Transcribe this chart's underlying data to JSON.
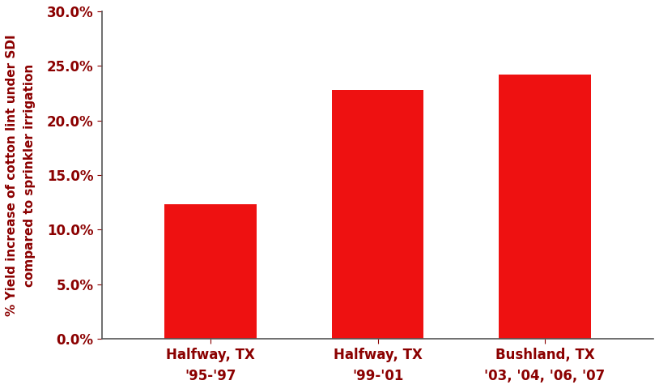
{
  "categories": [
    "Halfway, TX\n'95-'97",
    "Halfway, TX\n'99-'01",
    "Bushland, TX\n'03, '04, '06, '07"
  ],
  "values": [
    0.123,
    0.228,
    0.242
  ],
  "bar_color": "#EE1111",
  "bar_edge_color": "#EE1111",
  "ylabel": "% Yield increase of cotton lint under SDI\ncompared to sprinkler irrigation",
  "ylim": [
    0,
    0.3
  ],
  "yticks": [
    0.0,
    0.05,
    0.1,
    0.15,
    0.2,
    0.25,
    0.3
  ],
  "background_color": "#ffffff",
  "ylabel_color": "#8B0000",
  "tick_label_color": "#8B0000",
  "bar_width": 0.55,
  "ylabel_fontsize": 11,
  "tick_label_fontsize": 12,
  "xlabel_fontsize": 12,
  "spine_color": "#555555"
}
